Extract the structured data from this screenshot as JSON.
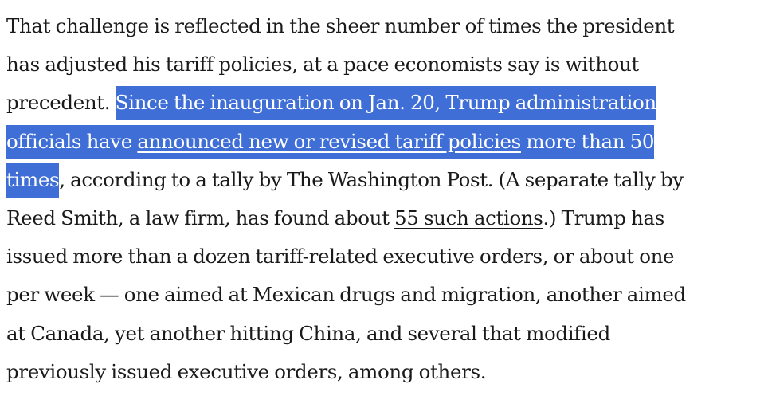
{
  "paragraph": {
    "lines": [
      "That challenge is reflected in the sheer number of times the president",
      "has adjusted his tariff policies, at a pace economists say is without",
      "precedent. ",
      "Since the inauguration on Jan. 20, Trump administration",
      "officials have ",
      "announced new or revised tariff policies",
      " more than 50",
      "times",
      ", according to a tally by The Washington Post. (A separate tally by",
      "Reed Smith, a law firm, has found about ",
      "55 such actions",
      ".) Trump has",
      "issued more than a dozen tariff-related executive orders, or about one",
      "per week — one aimed at Mexican drugs and migration, another aimed",
      "at Canada, yet another hitting China, and several that modified",
      "previously issued executive orders, among others."
    ]
  },
  "colors": {
    "text": "#1a1a1a",
    "highlight_background": "#3f6fd6",
    "highlight_text": "#ffffff"
  }
}
